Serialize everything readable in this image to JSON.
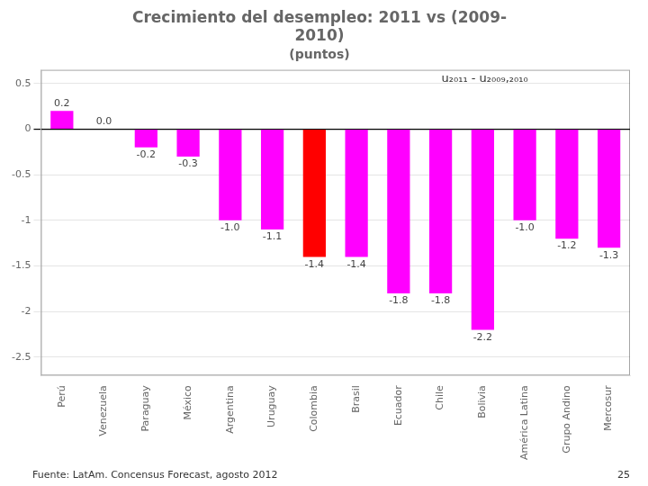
{
  "chart_data": {
    "type": "bar",
    "title": "Crecimiento del desempleo: 2011 vs (2009-\n2010)",
    "subtitle": "(puntos)",
    "categories": [
      "Perú",
      "Venezuela",
      "Paraguay",
      "México",
      "Argentina",
      "Uruguay",
      "Colombia",
      "Brasil",
      "Ecuador",
      "Chile",
      "Bolivia",
      "América Latina",
      "Grupo Andino",
      "Mercosur"
    ],
    "values": [
      0.2,
      0.0,
      -0.2,
      -0.3,
      -1.0,
      -1.1,
      -1.4,
      -1.4,
      -1.8,
      -1.8,
      -2.2,
      -1.0,
      -1.2,
      -1.3
    ],
    "value_labels": [
      "0.2",
      "0.0",
      "-0.2",
      "-0.3",
      "-1.0",
      "-1.1",
      "-1.4",
      "-1.4",
      "-1.8",
      "-1.8",
      "-2.2",
      "-1.0",
      "-1.2",
      "-1.3"
    ],
    "colors": [
      "#FF00FF",
      "#FF00FF",
      "#FF00FF",
      "#FF00FF",
      "#FF00FF",
      "#FF00FF",
      "#FF0000",
      "#FF00FF",
      "#FF00FF",
      "#FF00FF",
      "#FF00FF",
      "#FF00FF",
      "#FF00FF",
      "#FF00FF"
    ],
    "ylim": [
      -2.7,
      0.65
    ],
    "yticks": [
      0.5,
      0,
      -0.5,
      -1,
      -1.5,
      -2,
      -2.5
    ],
    "grid": true,
    "data_labels": true,
    "annotation": "u₂₀₁₁ - u₂₀₀₉,₂₀₁₀",
    "footer": "Fuente: LatAm. Concensus Forecast, agosto 2012",
    "page_number": "25"
  }
}
